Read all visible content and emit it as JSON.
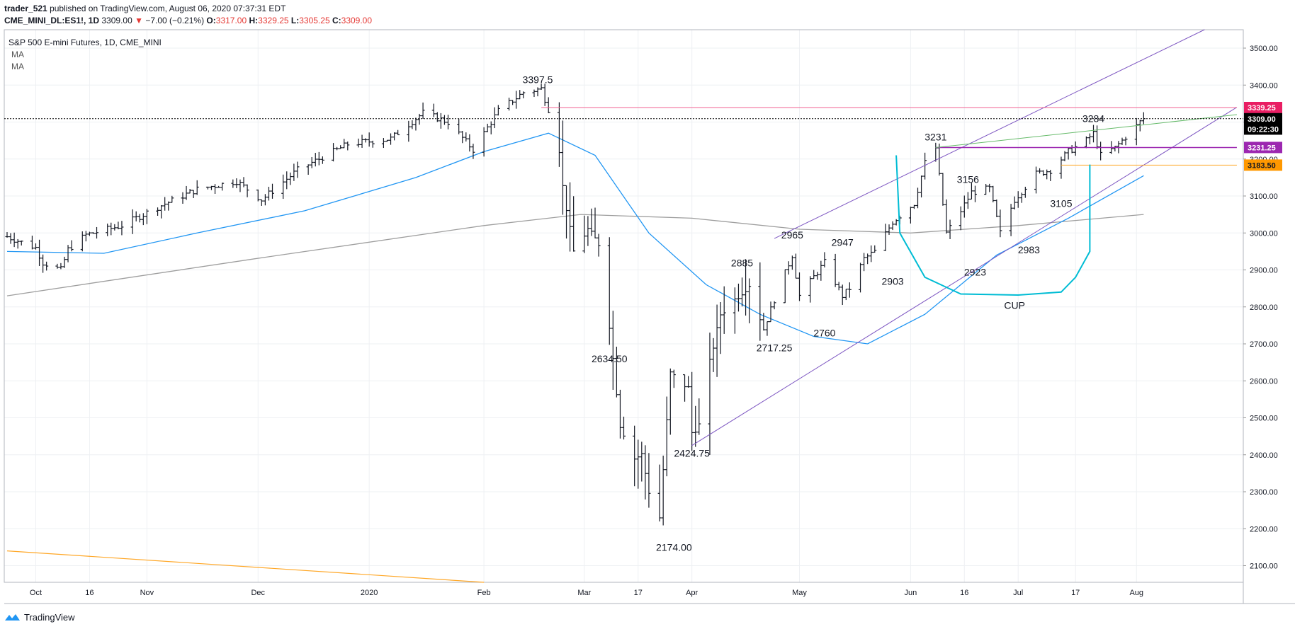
{
  "header": {
    "publisher": "trader_521",
    "published_text": "published on TradingView.com, August 06, 2020 07:37:31 EDT",
    "symbol": "CME_MINI_DL:ES1!, 1D",
    "last": "3309.00",
    "change_arrow": "▼",
    "change": "−7.00 (−0.21%)",
    "open_label": "O:",
    "open": "3317.00",
    "high_label": "H:",
    "high": "3329.25",
    "low_label": "L:",
    "low": "3305.25",
    "close_label": "C:",
    "close": "3309.00"
  },
  "legend": {
    "title": "S&P 500 E-mini Futures, 1D, CME_MINI",
    "ma1": "MA",
    "ma2": "MA"
  },
  "footer": {
    "brand": "TradingView",
    "logo_icon": "tradingview-logo-icon"
  },
  "colors": {
    "grid": "#eef0f3",
    "bars": "#131722",
    "ma50": "#2196f3",
    "ma200": "#9e9e9e",
    "channel": "#7e57c2",
    "resistance": "#f06292",
    "green_line": "#66bb6a",
    "cup": "#00bcd4",
    "orange": "#ffa726",
    "tag_3339": "#e91e63",
    "tag_3309": "#000000",
    "tag_timer": "#000000",
    "tag_3231": "#9c27b0",
    "tag_3183": "#ff9800"
  },
  "chart_data": {
    "type": "ohlc",
    "y_axis": {
      "ticks": [
        2100,
        2200,
        2300,
        2400,
        2500,
        2600,
        2700,
        2800,
        2900,
        3000,
        3100,
        3200,
        3300,
        3400,
        3500
      ],
      "tick_labels": [
        "2100.00",
        "2200.00",
        "2300.00",
        "2400.00",
        "2500.00",
        "2600.00",
        "2700.00",
        "2800.00",
        "2900.00",
        "3000.00",
        "3100.00",
        "3200.00",
        "3300.00",
        "3400.00",
        "3500.00"
      ]
    },
    "x_axis": {
      "tick_labels": [
        "Oct",
        "16",
        "Nov",
        "Dec",
        "2020",
        "Feb",
        "Mar",
        "17",
        "Apr",
        "May",
        "Jun",
        "16",
        "Jul",
        "17",
        "Aug"
      ],
      "tick_dates": [
        "2019-10-01",
        "2019-10-16",
        "2019-11-01",
        "2019-12-02",
        "2020-01-02",
        "2020-02-03",
        "2020-03-02",
        "2020-03-17",
        "2020-04-01",
        "2020-05-01",
        "2020-06-01",
        "2020-06-16",
        "2020-07-01",
        "2020-07-17",
        "2020-08-03"
      ],
      "range": [
        "2019-09-23",
        "2020-09-01"
      ]
    },
    "price_tags": [
      {
        "label": "3339.25",
        "value": 3339.25,
        "color_key": "tag_3339"
      },
      {
        "label": "3309.00",
        "value": 3309,
        "color_key": "tag_3309"
      },
      {
        "label": "09:22:30",
        "value": 3281,
        "color_key": "tag_timer"
      },
      {
        "label": "3231.25",
        "value": 3231.25,
        "color_key": "tag_3231"
      },
      {
        "label": "3183.50",
        "value": 3183.5,
        "color_key": "tag_3183"
      }
    ],
    "annotations": [
      {
        "text": "3397.5",
        "date": "2020-02-18",
        "price": 3405
      },
      {
        "text": "2634.50",
        "date": "2020-03-09",
        "price": 2650
      },
      {
        "text": "2174.00",
        "date": "2020-03-27",
        "price": 2140
      },
      {
        "text": "2424.75",
        "date": "2020-04-01",
        "price": 2395
      },
      {
        "text": "2717.25",
        "date": "2020-04-24",
        "price": 2680
      },
      {
        "text": "2885",
        "date": "2020-04-15",
        "price": 2910
      },
      {
        "text": "2965",
        "date": "2020-04-29",
        "price": 2985
      },
      {
        "text": "2947",
        "date": "2020-05-13",
        "price": 2965
      },
      {
        "text": "2760",
        "date": "2020-05-08",
        "price": 2720
      },
      {
        "text": "2903",
        "date": "2020-05-27",
        "price": 2860
      },
      {
        "text": "3231",
        "date": "2020-06-08",
        "price": 3250
      },
      {
        "text": "3156",
        "date": "2020-06-17",
        "price": 3135
      },
      {
        "text": "2923",
        "date": "2020-06-19",
        "price": 2885
      },
      {
        "text": "2983",
        "date": "2020-07-04",
        "price": 2945
      },
      {
        "text": "3105",
        "date": "2020-07-13",
        "price": 3070
      },
      {
        "text": "3284",
        "date": "2020-07-22",
        "price": 3300
      },
      {
        "text": "CUP",
        "date": "2020-06-30",
        "price": 2795
      }
    ],
    "series": [
      {
        "name": "",
        "kind": "ohlc",
        "color_key": "bars",
        "daily_ohlc_anchor_closes": [
          [
            "2019-09-23",
            2990
          ],
          [
            "2019-10-01",
            2960
          ],
          [
            "2019-10-03",
            2920
          ],
          [
            "2019-10-08",
            2900
          ],
          [
            "2019-10-10",
            2955
          ],
          [
            "2019-10-15",
            2995
          ],
          [
            "2019-10-25",
            3020
          ],
          [
            "2019-11-04",
            3070
          ],
          [
            "2019-11-15",
            3118
          ],
          [
            "2019-11-26",
            3140
          ],
          [
            "2019-12-03",
            3090
          ],
          [
            "2019-12-13",
            3170
          ],
          [
            "2019-12-27",
            3240
          ],
          [
            "2020-01-08",
            3255
          ],
          [
            "2020-01-17",
            3325
          ],
          [
            "2020-01-24",
            3300
          ],
          [
            "2020-01-31",
            3225
          ],
          [
            "2020-02-07",
            3330
          ],
          [
            "2020-02-14",
            3380
          ],
          [
            "2020-02-19",
            3390
          ],
          [
            "2020-02-21",
            3335
          ],
          [
            "2020-02-24",
            3225
          ],
          [
            "2020-02-25",
            3125
          ],
          [
            "2020-02-28",
            2950
          ],
          [
            "2020-03-03",
            3010
          ],
          [
            "2020-03-06",
            2970
          ],
          [
            "2020-03-09",
            2750
          ],
          [
            "2020-03-12",
            2480
          ],
          [
            "2020-03-16",
            2390
          ],
          [
            "2020-03-18",
            2400
          ],
          [
            "2020-03-20",
            2300
          ],
          [
            "2020-03-23",
            2230
          ],
          [
            "2020-03-26",
            2620
          ],
          [
            "2020-03-31",
            2580
          ],
          [
            "2020-04-01",
            2460
          ],
          [
            "2020-04-03",
            2480
          ],
          [
            "2020-04-06",
            2650
          ],
          [
            "2020-04-09",
            2780
          ],
          [
            "2020-04-14",
            2830
          ],
          [
            "2020-04-17",
            2860
          ],
          [
            "2020-04-21",
            2740
          ],
          [
            "2020-04-24",
            2820
          ],
          [
            "2020-04-29",
            2940
          ],
          [
            "2020-05-01",
            2830
          ],
          [
            "2020-05-08",
            2920
          ],
          [
            "2020-05-13",
            2830
          ],
          [
            "2020-05-15",
            2850
          ],
          [
            "2020-05-19",
            2930
          ],
          [
            "2020-05-22",
            2950
          ],
          [
            "2020-05-27",
            3030
          ],
          [
            "2020-06-02",
            3080
          ],
          [
            "2020-06-05",
            3190
          ],
          [
            "2020-06-08",
            3230
          ],
          [
            "2020-06-11",
            3000
          ],
          [
            "2020-06-15",
            3060
          ],
          [
            "2020-06-18",
            3110
          ],
          [
            "2020-06-23",
            3120
          ],
          [
            "2020-06-26",
            3000
          ],
          [
            "2020-06-30",
            3090
          ],
          [
            "2020-07-06",
            3160
          ],
          [
            "2020-07-10",
            3170
          ],
          [
            "2020-07-15",
            3220
          ],
          [
            "2020-07-20",
            3250
          ],
          [
            "2020-07-22",
            3270
          ],
          [
            "2020-07-24",
            3210
          ],
          [
            "2020-07-28",
            3230
          ],
          [
            "2020-07-31",
            3260
          ],
          [
            "2020-08-04",
            3300
          ],
          [
            "2020-08-05",
            3309
          ]
        ]
      },
      {
        "name": "",
        "kind": "line",
        "color_key": "ma50",
        "points": [
          [
            "2019-09-23",
            2950
          ],
          [
            "2019-10-20",
            2945
          ],
          [
            "2019-11-15",
            3000
          ],
          [
            "2019-12-15",
            3060
          ],
          [
            "2020-01-15",
            3150
          ],
          [
            "2020-02-03",
            3220
          ],
          [
            "2020-02-21",
            3270
          ],
          [
            "2020-03-05",
            3210
          ],
          [
            "2020-03-20",
            3000
          ],
          [
            "2020-04-05",
            2860
          ],
          [
            "2020-04-20",
            2780
          ],
          [
            "2020-05-05",
            2720
          ],
          [
            "2020-05-20",
            2700
          ],
          [
            "2020-06-05",
            2780
          ],
          [
            "2020-06-25",
            2940
          ],
          [
            "2020-07-15",
            3040
          ],
          [
            "2020-08-05",
            3155
          ]
        ]
      },
      {
        "name": "",
        "kind": "line",
        "color_key": "ma200",
        "points": [
          [
            "2019-09-23",
            2830
          ],
          [
            "2019-12-01",
            2930
          ],
          [
            "2020-02-03",
            3020
          ],
          [
            "2020-03-01",
            3050
          ],
          [
            "2020-04-01",
            3040
          ],
          [
            "2020-05-01",
            3010
          ],
          [
            "2020-06-01",
            3000
          ],
          [
            "2020-07-01",
            3020
          ],
          [
            "2020-08-05",
            3050
          ]
        ]
      }
    ]
  }
}
